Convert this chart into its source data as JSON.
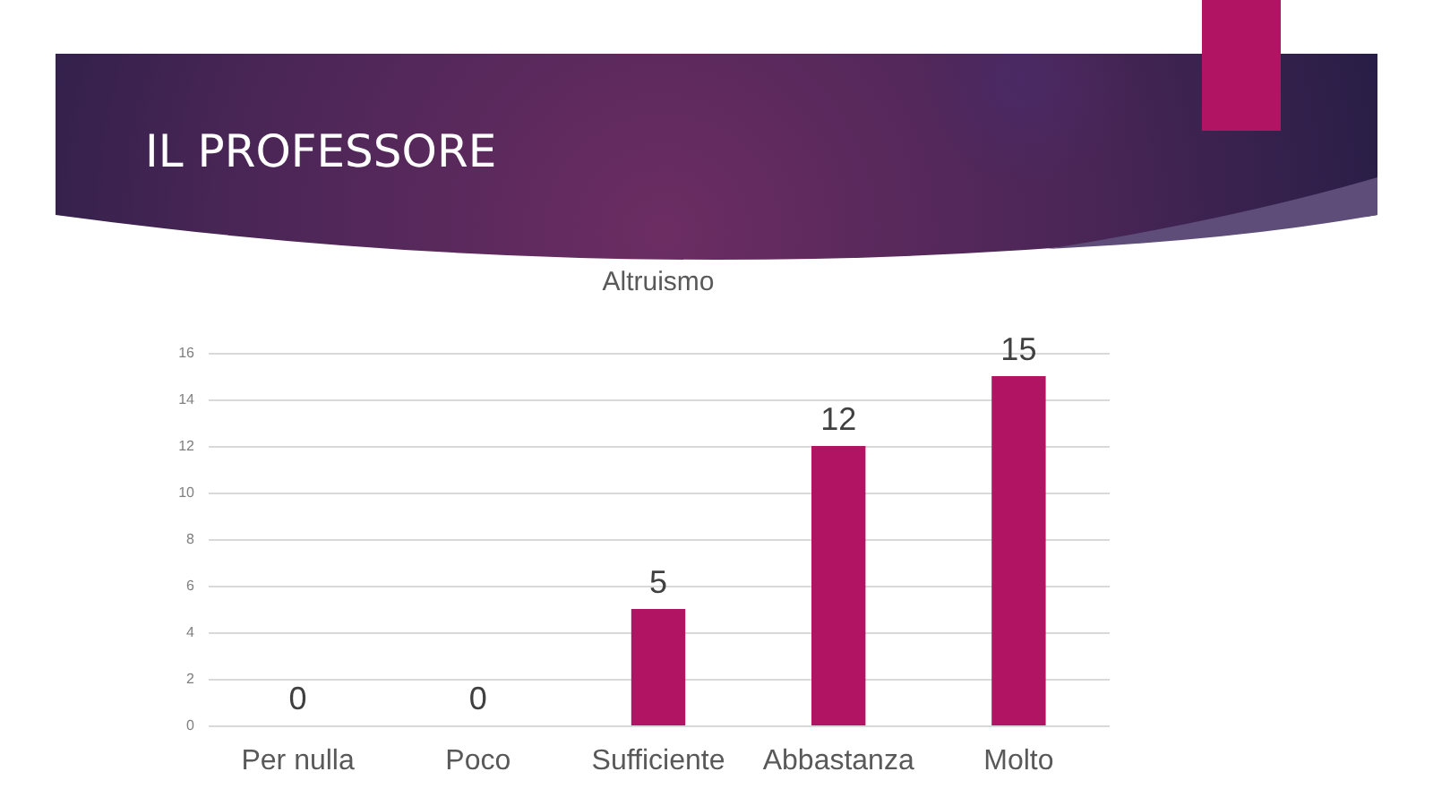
{
  "chart_data": {
    "type": "bar",
    "title": "IL PROFESSORE",
    "subtitle": "Altruismo",
    "categories": [
      "Per nulla",
      "Poco",
      "Sufficiente",
      "Abbastanza",
      "Molto"
    ],
    "values": [
      0,
      0,
      5,
      12,
      15
    ],
    "color": "#b01462",
    "ylim": [
      0,
      16
    ],
    "yticks": [
      0,
      2,
      4,
      6,
      8,
      10,
      12,
      14,
      16
    ],
    "grid": "y",
    "data_labels": true
  }
}
